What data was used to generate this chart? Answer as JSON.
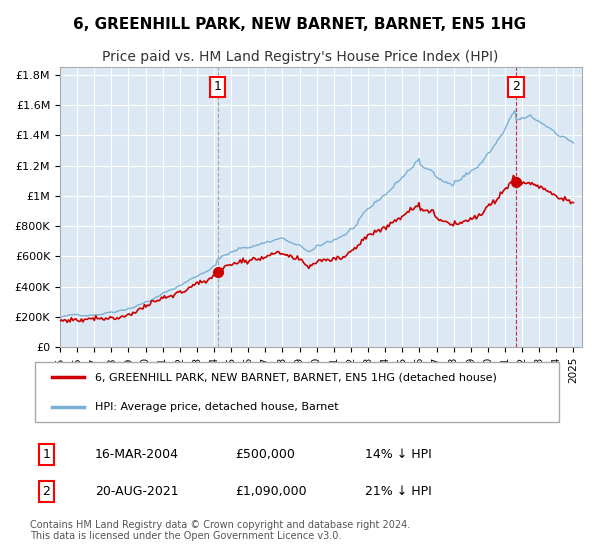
{
  "title": "6, GREENHILL PARK, NEW BARNET, BARNET, EN5 1HG",
  "subtitle": "Price paid vs. HM Land Registry's House Price Index (HPI)",
  "title_fontsize": 11,
  "subtitle_fontsize": 10,
  "bg_color": "#dce9f5",
  "plot_bg_color": "#dce9f5",
  "grid_color": "#ffffff",
  "hpi_color": "#7ab0d4",
  "price_color": "#cc0000",
  "marker_color": "#cc0000",
  "sale1_date": 2004.21,
  "sale1_price": 500000,
  "sale1_label": "1",
  "sale1_hpi_pct": "14% ↓ HPI",
  "sale1_date_str": "16-MAR-2004",
  "sale2_date": 2021.64,
  "sale2_price": 1090000,
  "sale2_label": "2",
  "sale2_hpi_pct": "21% ↓ HPI",
  "sale2_date_str": "20-AUG-2021",
  "legend_label1": "6, GREENHILL PARK, NEW BARNET, BARNET, EN5 1HG (detached house)",
  "legend_label2": "HPI: Average price, detached house, Barnet",
  "footer": "Contains HM Land Registry data © Crown copyright and database right 2024.\nThis data is licensed under the Open Government Licence v3.0.",
  "ylim": [
    0,
    1850000
  ],
  "xlim_start": 1995.0,
  "xlim_end": 2025.5,
  "ytick_values": [
    0,
    200000,
    400000,
    600000,
    800000,
    1000000,
    1200000,
    1400000,
    1600000,
    1800000
  ],
  "ytick_labels": [
    "£0",
    "£200K",
    "£400K",
    "£600K",
    "£800K",
    "£1M",
    "£1.2M",
    "£1.4M",
    "£1.6M",
    "£1.8M"
  ],
  "xtick_years": [
    1995,
    1996,
    1997,
    1998,
    1999,
    2000,
    2001,
    2002,
    2003,
    2004,
    2005,
    2006,
    2007,
    2008,
    2009,
    2010,
    2011,
    2012,
    2013,
    2014,
    2015,
    2016,
    2017,
    2018,
    2019,
    2020,
    2021,
    2022,
    2023,
    2024,
    2025
  ]
}
